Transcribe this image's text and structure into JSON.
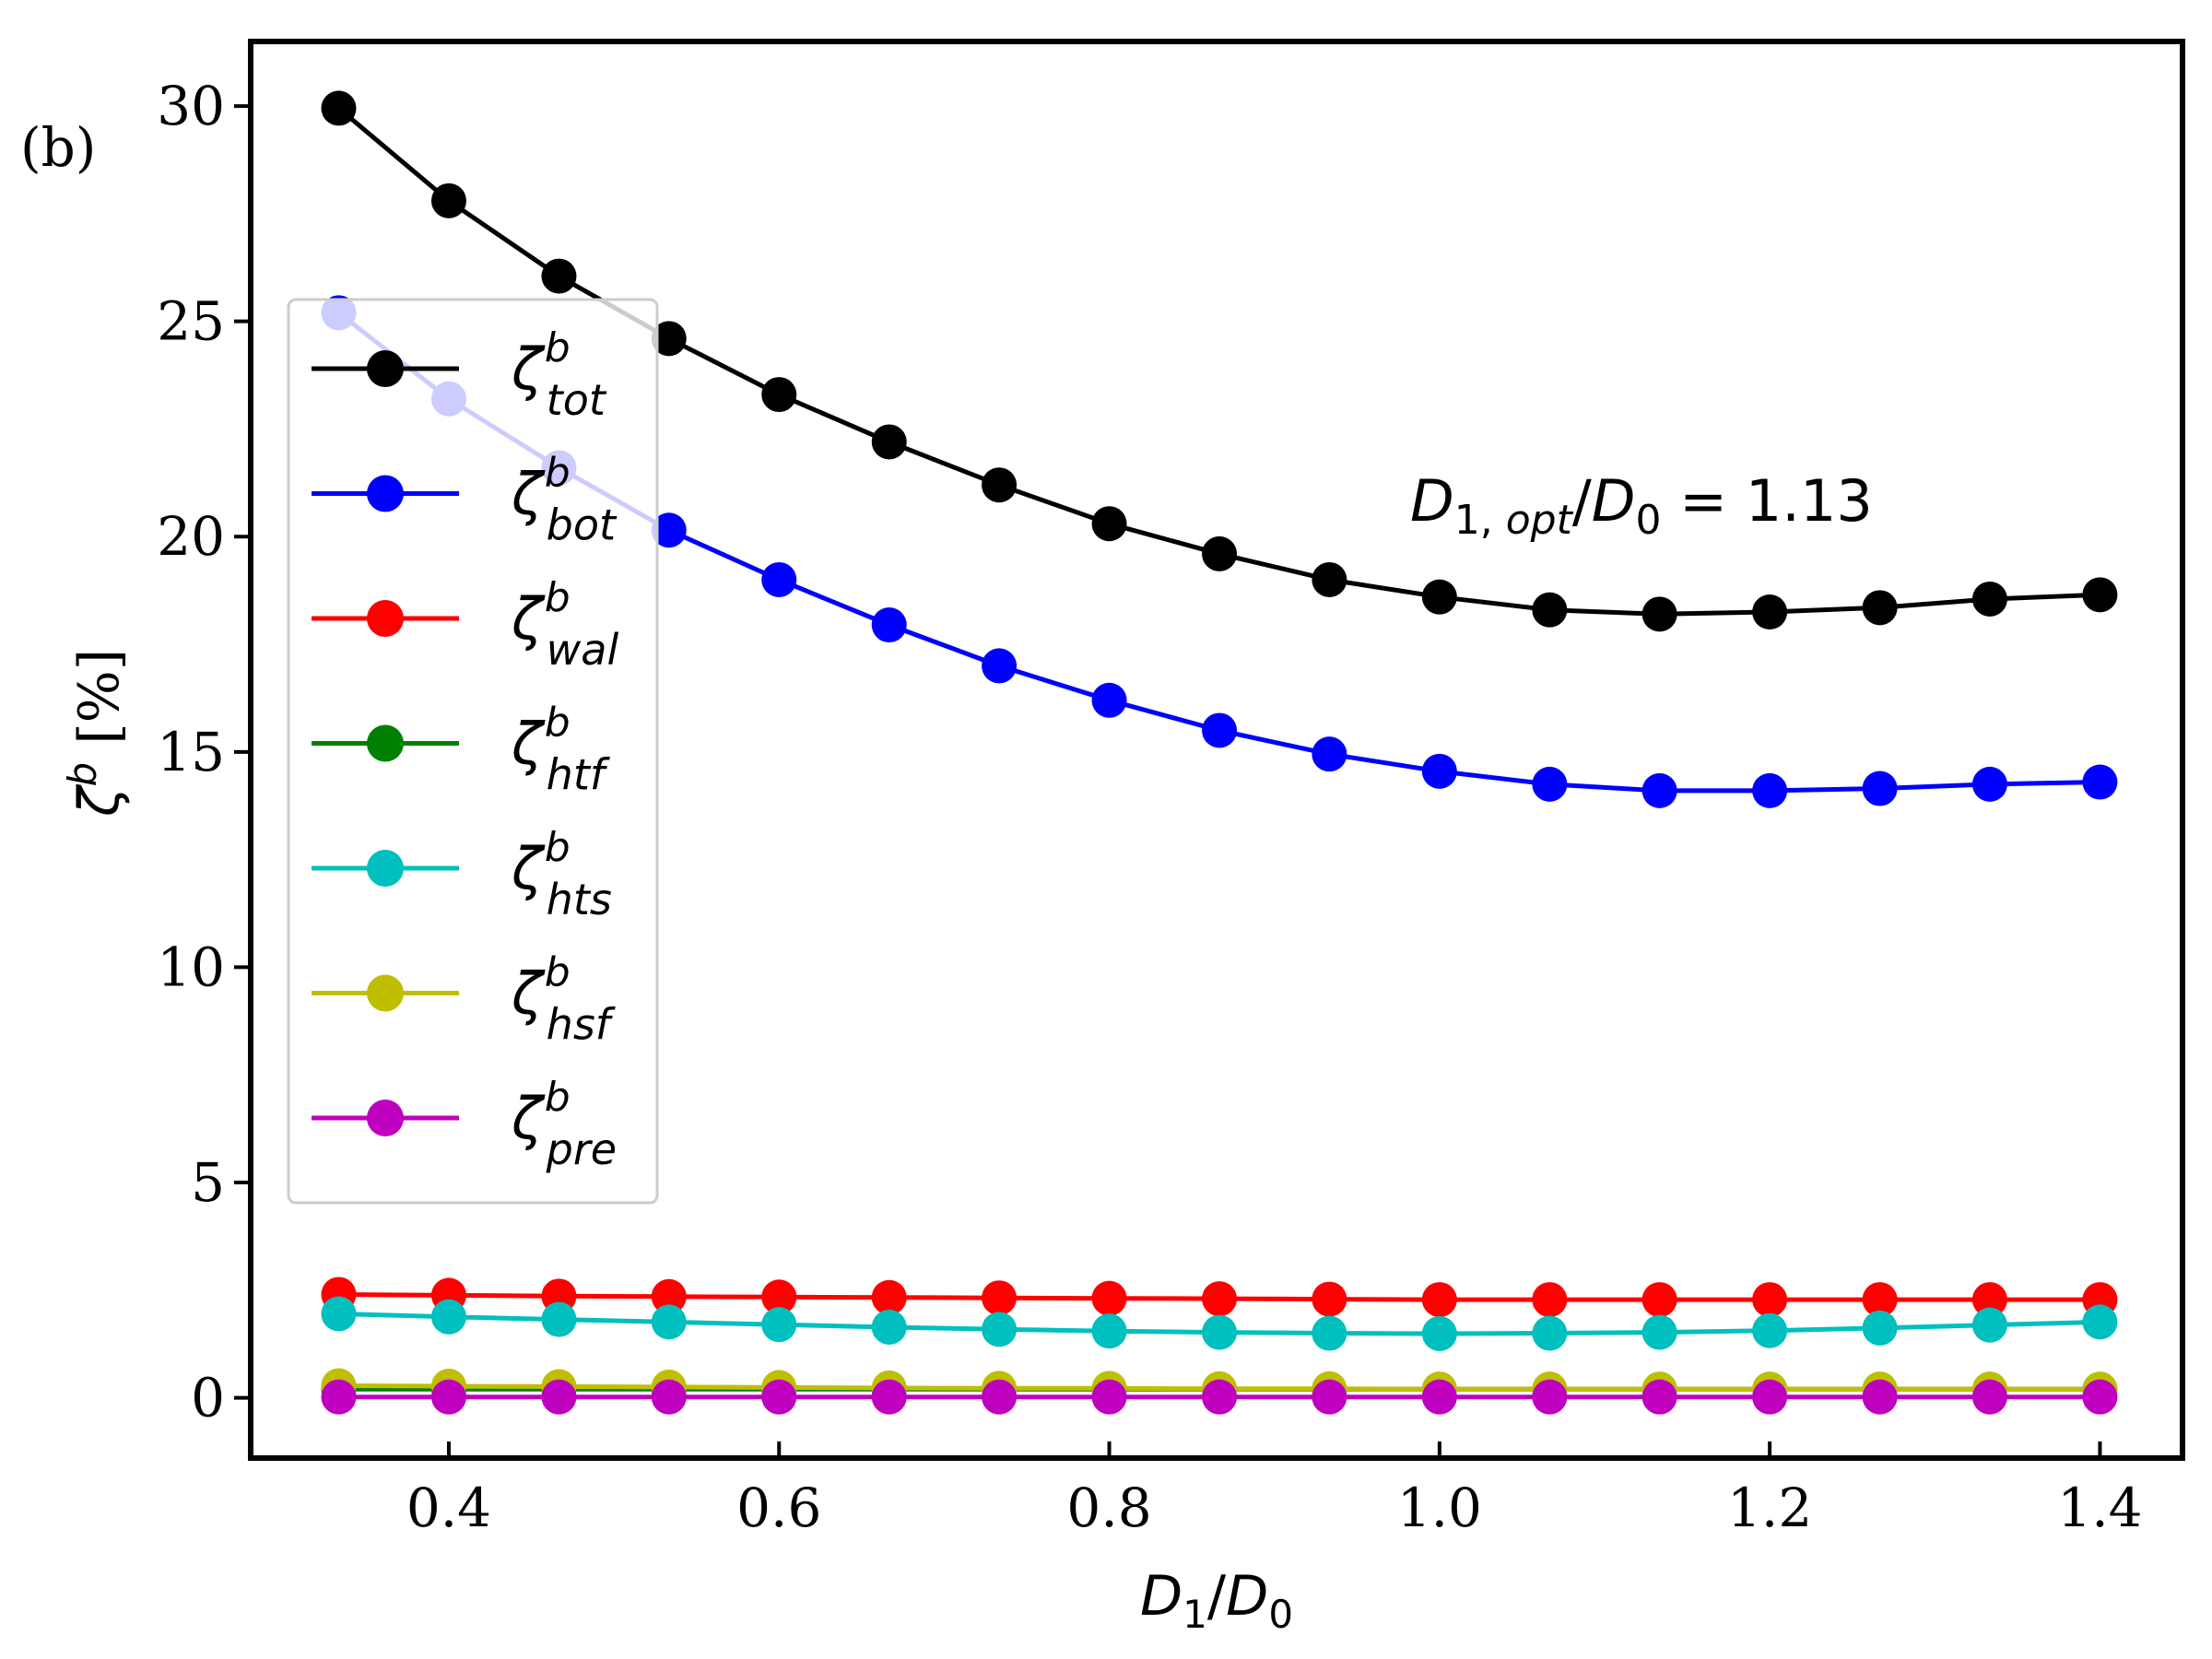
{
  "chart_data": {
    "type": "line",
    "panel_label": "(b)",
    "xlabel": "D1/D0",
    "ylabel": "ζb [%]",
    "xlim": [
      0.28,
      1.45
    ],
    "ylim": [
      -1.4,
      31.5
    ],
    "xticks": [
      0.4,
      0.6,
      0.8,
      1.0,
      1.2,
      1.4
    ],
    "xtick_labels": [
      "0.4",
      "0.6",
      "0.8",
      "1.0",
      "1.2",
      "1.4"
    ],
    "yticks": [
      0,
      5,
      10,
      15,
      20,
      25,
      30
    ],
    "ytick_labels": [
      "0",
      "5",
      "10",
      "15",
      "20",
      "25",
      "30"
    ],
    "grid": false,
    "legend_position": "upper-left",
    "annotation": "D1, opt/D0 = 1.13",
    "x": [
      0.3333,
      0.4,
      0.4667,
      0.5333,
      0.6,
      0.6667,
      0.7333,
      0.8,
      0.8667,
      0.9333,
      1.0,
      1.0667,
      1.1333,
      1.2,
      1.2667,
      1.3333,
      1.4
    ],
    "series": [
      {
        "name": "tot",
        "color": "#000000",
        "values": [
          29.95,
          27.8,
          26.05,
          24.6,
          23.3,
          22.2,
          21.2,
          20.3,
          19.6,
          19.0,
          18.6,
          18.3,
          18.2,
          18.25,
          18.35,
          18.55,
          18.65
        ]
      },
      {
        "name": "bot",
        "color": "#0000ff",
        "values": [
          25.2,
          23.2,
          21.6,
          20.15,
          19.0,
          17.95,
          17.0,
          16.2,
          15.5,
          14.95,
          14.55,
          14.25,
          14.1,
          14.1,
          14.15,
          14.25,
          14.3
        ]
      },
      {
        "name": "wal",
        "color": "#ff0000",
        "values": [
          2.4,
          2.38,
          2.36,
          2.35,
          2.34,
          2.33,
          2.32,
          2.31,
          2.3,
          2.29,
          2.28,
          2.28,
          2.28,
          2.28,
          2.28,
          2.28,
          2.28
        ]
      },
      {
        "name": "htf",
        "color": "#008000",
        "values": [
          0.2,
          0.2,
          0.2,
          0.2,
          0.2,
          0.2,
          0.2,
          0.2,
          0.2,
          0.2,
          0.2,
          0.2,
          0.2,
          0.2,
          0.2,
          0.2,
          0.2
        ]
      },
      {
        "name": "hts",
        "color": "#00bfbf",
        "values": [
          1.95,
          1.88,
          1.82,
          1.76,
          1.7,
          1.64,
          1.59,
          1.55,
          1.52,
          1.5,
          1.49,
          1.5,
          1.52,
          1.56,
          1.62,
          1.69,
          1.76
        ]
      },
      {
        "name": "hsf",
        "color": "#bfbf00",
        "values": [
          0.28,
          0.27,
          0.26,
          0.25,
          0.24,
          0.23,
          0.22,
          0.22,
          0.21,
          0.21,
          0.2,
          0.2,
          0.2,
          0.2,
          0.2,
          0.2,
          0.2
        ]
      },
      {
        "name": "pre",
        "color": "#bf00bf",
        "values": [
          0.02,
          0.02,
          0.02,
          0.02,
          0.02,
          0.02,
          0.02,
          0.02,
          0.02,
          0.02,
          0.02,
          0.02,
          0.02,
          0.02,
          0.02,
          0.02,
          0.02
        ]
      }
    ]
  }
}
